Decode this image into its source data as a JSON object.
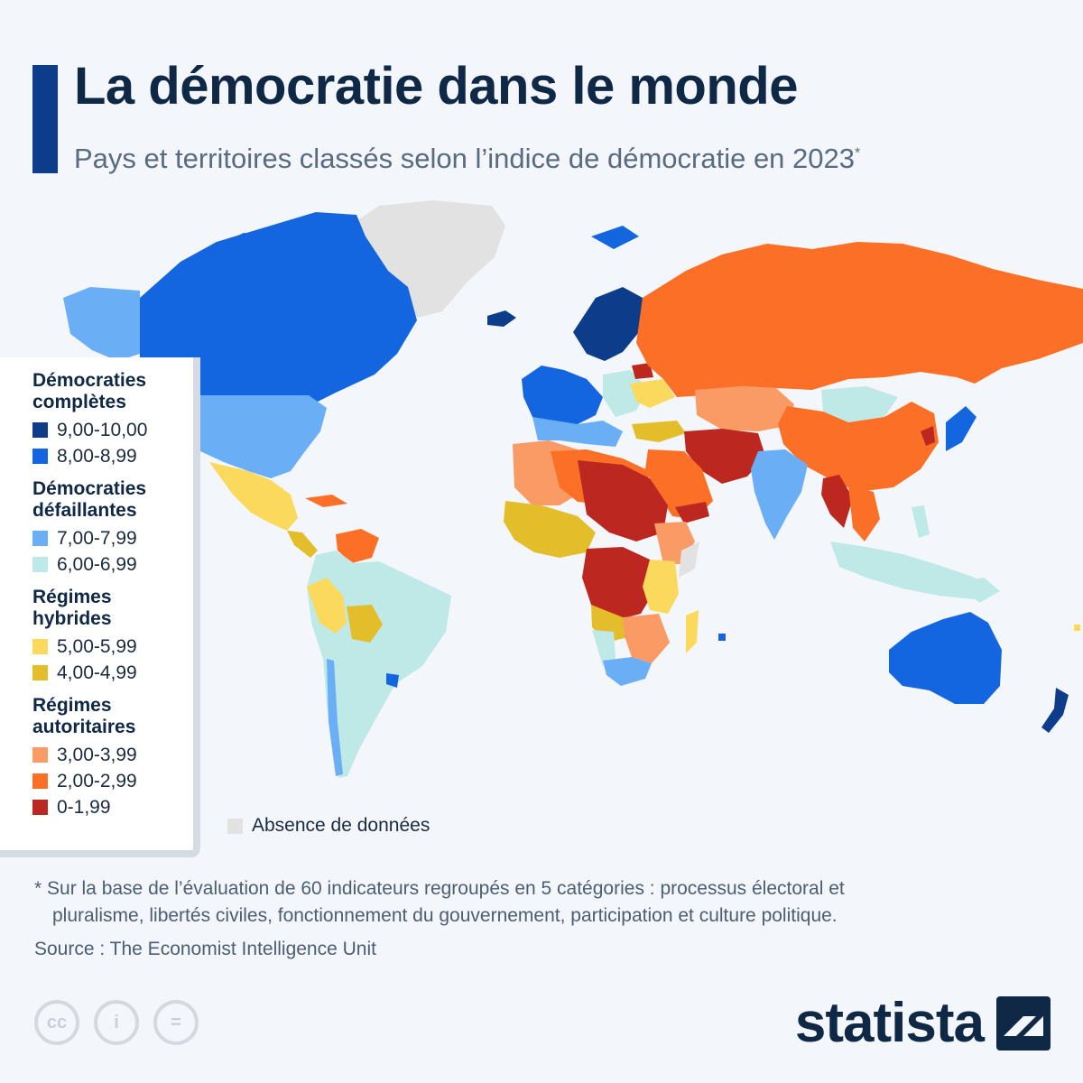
{
  "header": {
    "title": "La démocratie dans le monde",
    "subtitle": "Pays et territoires classés selon l’indice de démocratie en 2023",
    "subtitle_mark": "*"
  },
  "colors": {
    "c9": "#0d3d8a",
    "c8": "#1466e0",
    "c7": "#6aaef6",
    "c6": "#bfe9e6",
    "c5": "#fbd95c",
    "c4": "#e4bd2a",
    "c3": "#fa9a64",
    "c2": "#fb6f26",
    "c1": "#bc2820",
    "nodata": "#e2e2e2",
    "ocean": "#f3f6fa"
  },
  "legend": {
    "groups": [
      {
        "title_1": "Démocraties",
        "title_2": "complètes",
        "items": [
          {
            "label": "9,00-10,00",
            "color": "#0d3d8a"
          },
          {
            "label": "8,00-8,99",
            "color": "#1466e0"
          }
        ]
      },
      {
        "title_1": "Démocraties",
        "title_2": "défaillantes",
        "items": [
          {
            "label": "7,00-7,99",
            "color": "#6aaef6"
          },
          {
            "label": "6,00-6,99",
            "color": "#bfe9e6"
          }
        ]
      },
      {
        "title_1": "Régimes",
        "title_2": "hybrides",
        "items": [
          {
            "label": "5,00-5,99",
            "color": "#fbd95c"
          },
          {
            "label": "4,00-4,99",
            "color": "#e4bd2a"
          }
        ]
      },
      {
        "title_1": "Régimes",
        "title_2": "autoritaires",
        "items": [
          {
            "label": "3,00-3,99",
            "color": "#fa9a64"
          },
          {
            "label": "2,00-2,99",
            "color": "#fb6f26"
          },
          {
            "label": "0-1,99",
            "color": "#bc2820"
          }
        ]
      }
    ],
    "no_data_label": "Absence de données"
  },
  "footnote": {
    "line1": "* Sur la base de l’évaluation de 60 indicateurs regroupés en 5 catégories : processus électoral et",
    "line2": "pluralisme, libertés civiles, fonctionnement du gouvernement, participation et culture politique."
  },
  "source": "Source : The Economist Intelligence Unit",
  "license_icons": [
    "cc-icon",
    "attribution-icon",
    "no-derivatives-icon"
  ],
  "license_glyphs": {
    "cc": "cc",
    "by": "i",
    "nd": "="
  },
  "brand": "statista"
}
